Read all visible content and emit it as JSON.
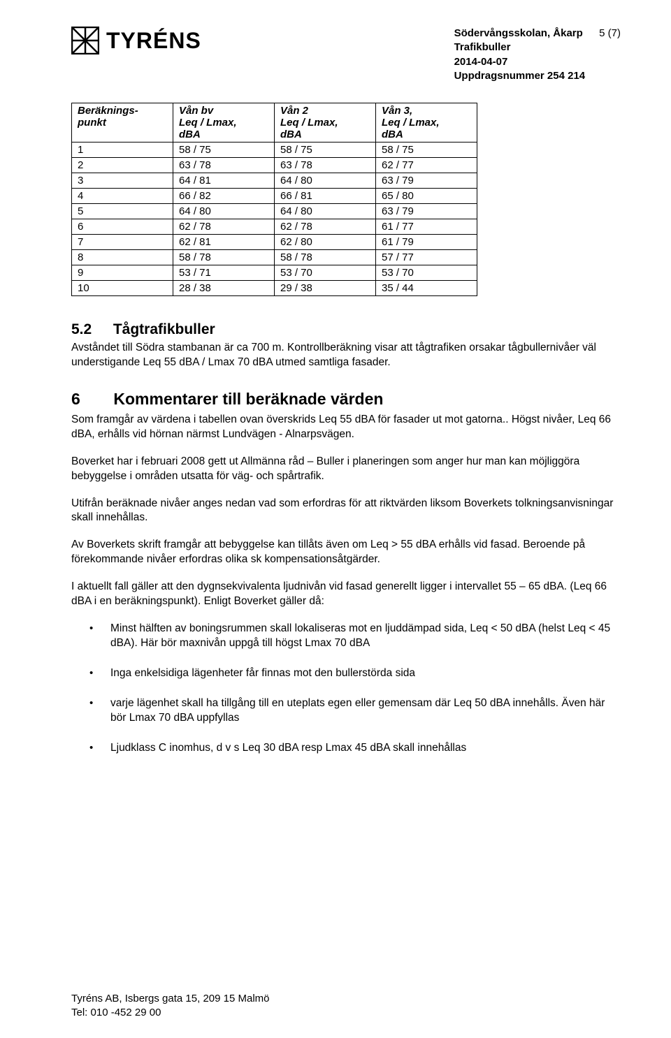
{
  "header": {
    "logo_text": "TYRÉNS",
    "project_line1": "Södervångsskolan, Åkarp",
    "project_line2": "Trafikbuller",
    "date": "2014-04-07",
    "assignment": "Uppdragsnummer 254 214",
    "page_num": "5 (7)"
  },
  "table": {
    "columns": [
      {
        "l1": "Beräknings-",
        "l2": "punkt",
        "l3": ""
      },
      {
        "l1": "Vån bv",
        "l2": "Leq / Lmax,",
        "l3": "dBA"
      },
      {
        "l1": "Vån 2",
        "l2": "Leq / Lmax,",
        "l3": "dBA"
      },
      {
        "l1": "Vån 3,",
        "l2": "Leq / Lmax,",
        "l3": "dBA"
      }
    ],
    "rows": [
      [
        "1",
        "58 / 75",
        "58 / 75",
        "58 / 75"
      ],
      [
        "2",
        "63 / 78",
        "63 / 78",
        "62 / 77"
      ],
      [
        "3",
        "64 / 81",
        "64 / 80",
        "63 / 79"
      ],
      [
        "4",
        "66 / 82",
        "66 / 81",
        "65 / 80"
      ],
      [
        "5",
        "64 / 80",
        "64 / 80",
        "63 / 79"
      ],
      [
        "6",
        "62 / 78",
        "62 / 78",
        "61 / 77"
      ],
      [
        "7",
        "62 / 81",
        "62 / 80",
        "61 / 79"
      ],
      [
        "8",
        "58 / 78",
        "58 / 78",
        "57 / 77"
      ],
      [
        "9",
        "53 / 71",
        "53 / 70",
        "53 / 70"
      ],
      [
        "10",
        "28 / 38",
        "29 / 38",
        "35 / 44"
      ]
    ]
  },
  "sections": {
    "s52_num": "5.2",
    "s52_title": "Tågtrafikbuller",
    "s52_p1": "Avståndet till Södra stambanan är ca 700 m. Kontrollberäkning visar att tågtrafiken orsakar tågbullernivåer väl understigande Leq 55 dBA / Lmax 70 dBA utmed samtliga fasader.",
    "s6_num": "6",
    "s6_title": "Kommentarer till beräknade värden",
    "s6_p1": "Som framgår av värdena i tabellen ovan överskrids Leq 55 dBA för fasader ut mot gatorna.. Högst nivåer, Leq 66 dBA, erhålls vid hörnan närmst Lundvägen - Alnarpsvägen.",
    "s6_p2": "Boverket har i februari 2008 gett ut Allmänna råd – Buller i planeringen som anger hur man kan möjliggöra bebyggelse i områden utsatta för väg- och spårtrafik.",
    "s6_p3": "Utifrån beräknade nivåer anges nedan vad som erfordras för att riktvärden liksom Boverkets tolkningsanvisningar skall innehållas.",
    "s6_p4": "Av Boverkets skrift framgår att bebyggelse kan tillåts även om Leq > 55 dBA erhålls vid fasad. Beroende på förekommande nivåer erfordras olika sk kompensationsåtgärder.",
    "s6_p5": "I aktuellt fall gäller att den dygnsekvivalenta ljudnivån vid fasad generellt ligger i intervallet 55 – 65 dBA. (Leq 66 dBA i en beräkningspunkt). Enligt Boverket gäller då:",
    "bullets": [
      "Minst hälften av boningsrummen skall lokaliseras mot en ljuddämpad sida, Leq < 50 dBA (helst Leq < 45 dBA). Här bör maxnivån uppgå till högst Lmax 70 dBA",
      "Inga enkelsidiga lägenheter får finnas mot den bullerstörda sida",
      "varje lägenhet skall ha tillgång till en uteplats egen eller gemensam där Leq 50 dBA innehålls. Även här bör Lmax 70 dBA uppfyllas",
      "Ljudklass C inomhus, d v s Leq 30 dBA resp Lmax 45 dBA skall innehållas"
    ]
  },
  "footer": {
    "line1": "Tyréns AB, Isbergs gata 15, 209 15 Malmö",
    "line2": "Tel: 010 -452 29 00"
  }
}
